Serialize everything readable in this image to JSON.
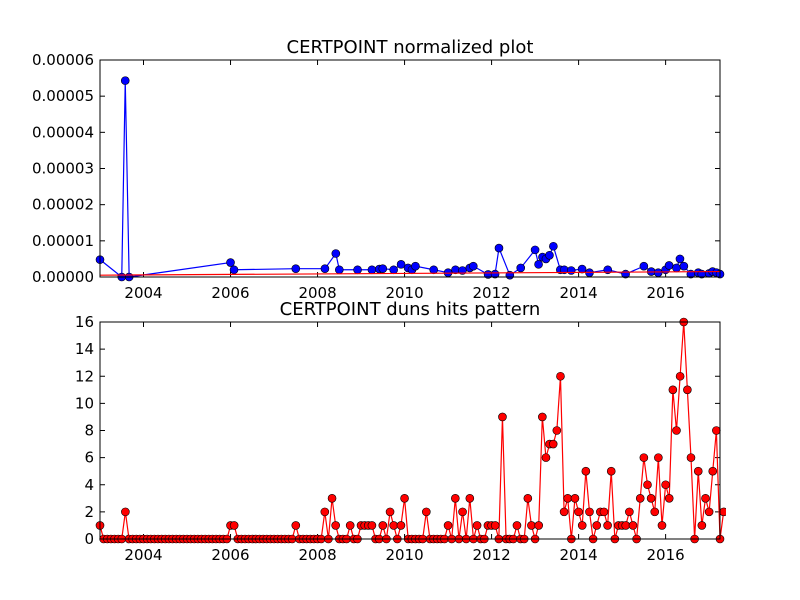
{
  "chart_data": [
    {
      "type": "line",
      "title": "CERTPOINT normalized plot",
      "xlabel": "",
      "ylabel": "",
      "xlim": [
        2003.0,
        2017.25
      ],
      "ylim": [
        0,
        6e-05
      ],
      "x_ticks": [
        2004,
        2006,
        2008,
        2010,
        2012,
        2014,
        2016
      ],
      "x_tick_labels": [
        "2004",
        "2006",
        "2008",
        "2010",
        "2012",
        "2014",
        "2016"
      ],
      "y_ticks": [
        0,
        1e-05,
        2e-05,
        3e-05,
        4e-05,
        5e-05,
        6e-05
      ],
      "y_tick_labels": [
        "0.00000",
        "0.00001",
        "0.00002",
        "0.00003",
        "0.00004",
        "0.00005",
        "0.00006"
      ],
      "series": [
        {
          "color": "#0000ff",
          "marker": "circle",
          "points": [
            [
              2003.0,
              4.8e-06
            ],
            [
              2003.5,
              0.0
            ],
            [
              2003.58,
              5.43e-05
            ],
            [
              2003.67,
              0.0
            ],
            [
              2006.0,
              4e-06
            ],
            [
              2006.08,
              2e-06
            ],
            [
              2007.5,
              2.3e-06
            ],
            [
              2008.17,
              2.3e-06
            ],
            [
              2008.42,
              6.5e-06
            ],
            [
              2008.5,
              2e-06
            ],
            [
              2008.92,
              2e-06
            ],
            [
              2009.25,
              2e-06
            ],
            [
              2009.42,
              2.2e-06
            ],
            [
              2009.5,
              2.3e-06
            ],
            [
              2009.75,
              2e-06
            ],
            [
              2009.92,
              3.5e-06
            ],
            [
              2010.08,
              2.5e-06
            ],
            [
              2010.17,
              2e-06
            ],
            [
              2010.25,
              3e-06
            ],
            [
              2010.67,
              2e-06
            ],
            [
              2011.0,
              1.2e-06
            ],
            [
              2011.17,
              2e-06
            ],
            [
              2011.33,
              1.8e-06
            ],
            [
              2011.5,
              2.5e-06
            ],
            [
              2011.58,
              3e-06
            ],
            [
              2011.92,
              7e-07
            ],
            [
              2012.08,
              8e-07
            ],
            [
              2012.17,
              8e-06
            ],
            [
              2012.42,
              5e-07
            ],
            [
              2012.67,
              2.5e-06
            ],
            [
              2013.0,
              7.5e-06
            ],
            [
              2013.08,
              3.5e-06
            ],
            [
              2013.17,
              5.5e-06
            ],
            [
              2013.25,
              5e-06
            ],
            [
              2013.33,
              6e-06
            ],
            [
              2013.42,
              8.5e-06
            ],
            [
              2013.58,
              2e-06
            ],
            [
              2013.67,
              2e-06
            ],
            [
              2013.83,
              1.8e-06
            ],
            [
              2014.08,
              2.2e-06
            ],
            [
              2014.25,
              1.2e-06
            ],
            [
              2014.67,
              2e-06
            ],
            [
              2015.08,
              8e-07
            ],
            [
              2015.5,
              3e-06
            ],
            [
              2015.67,
              1.5e-06
            ],
            [
              2015.83,
              1.2e-06
            ],
            [
              2016.0,
              2e-06
            ],
            [
              2016.08,
              3.2e-06
            ],
            [
              2016.25,
              2.5e-06
            ],
            [
              2016.33,
              5e-06
            ],
            [
              2016.42,
              3e-06
            ],
            [
              2016.58,
              8e-07
            ],
            [
              2016.75,
              1.2e-06
            ],
            [
              2016.83,
              8e-07
            ],
            [
              2017.0,
              1e-06
            ],
            [
              2017.08,
              1.5e-06
            ],
            [
              2017.17,
              1.2e-06
            ],
            [
              2017.25,
              8e-07
            ]
          ]
        },
        {
          "color": "#ff0000",
          "marker": "none",
          "points": [
            [
              2003.0,
              5e-07
            ],
            [
              2017.25,
              1.5e-06
            ]
          ]
        }
      ]
    },
    {
      "type": "line",
      "title": "CERTPOINT duns hits pattern",
      "xlabel": "",
      "ylabel": "",
      "xlim": [
        2003.0,
        2017.25
      ],
      "ylim": [
        0,
        16
      ],
      "x_ticks": [
        2004,
        2006,
        2008,
        2010,
        2012,
        2014,
        2016
      ],
      "x_tick_labels": [
        "2004",
        "2006",
        "2008",
        "2010",
        "2012",
        "2014",
        "2016"
      ],
      "y_ticks": [
        0,
        2,
        4,
        6,
        8,
        10,
        12,
        14,
        16
      ],
      "y_tick_labels": [
        "0",
        "2",
        "4",
        "6",
        "8",
        "10",
        "12",
        "14",
        "16"
      ],
      "series": [
        {
          "color": "#ff0000",
          "marker": "circle",
          "x_start": 2003.0,
          "x_step": 0.08333333,
          "values": [
            1,
            0,
            0,
            0,
            0,
            0,
            0,
            2,
            0,
            0,
            0,
            0,
            0,
            0,
            0,
            0,
            0,
            0,
            0,
            0,
            0,
            0,
            0,
            0,
            0,
            0,
            0,
            0,
            0,
            0,
            0,
            0,
            0,
            0,
            0,
            0,
            1,
            1,
            0,
            0,
            0,
            0,
            0,
            0,
            0,
            0,
            0,
            0,
            0,
            0,
            0,
            0,
            0,
            0,
            1,
            0,
            0,
            0,
            0,
            0,
            0,
            0,
            2,
            0,
            3,
            1,
            0,
            0,
            0,
            1,
            0,
            0,
            1,
            1,
            1,
            1,
            0,
            0,
            1,
            0,
            2,
            1,
            0,
            1,
            3,
            0,
            0,
            0,
            0,
            0,
            2,
            0,
            0,
            0,
            0,
            0,
            1,
            0,
            3,
            0,
            2,
            0,
            3,
            0,
            1,
            0,
            0,
            1,
            1,
            1,
            0,
            9,
            0,
            0,
            0,
            1,
            0,
            0,
            3,
            1,
            0,
            1,
            9,
            6,
            7,
            7,
            8,
            12,
            2,
            3,
            0,
            3,
            2,
            1,
            5,
            2,
            0,
            1,
            2,
            2,
            1,
            5,
            0,
            1,
            1,
            1,
            2,
            1,
            0,
            3,
            6,
            4,
            3,
            2,
            6,
            1,
            4,
            3,
            11,
            8,
            12,
            16,
            11,
            6,
            0,
            5,
            1,
            3,
            2,
            5,
            8,
            0,
            2
          ]
        }
      ]
    }
  ]
}
